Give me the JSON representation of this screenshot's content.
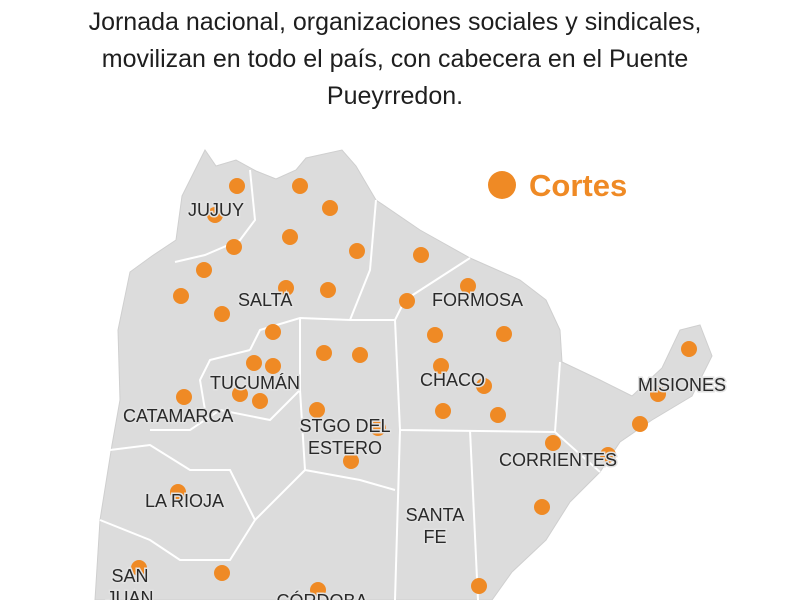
{
  "header": {
    "title": [
      "Jornada nacional, organizaciones sociales y sindicales,",
      "movilizan en todo el país, con cabecera en el Puente",
      "Pueyrredon."
    ]
  },
  "legend": {
    "label": "Cortes"
  },
  "labels": [
    {
      "lines": [
        "JUJUY"
      ]
    },
    {
      "lines": [
        "SALTA"
      ]
    },
    {
      "lines": [
        "FORMOSA"
      ]
    },
    {
      "lines": [
        "TUCUMÁN"
      ]
    },
    {
      "lines": [
        "CHACO"
      ]
    },
    {
      "lines": [
        "MISIONES"
      ]
    },
    {
      "lines": [
        "CATAMARCA"
      ]
    },
    {
      "lines": [
        "STGO DEL",
        "ESTERO"
      ]
    },
    {
      "lines": [
        "CORRIENTES"
      ]
    },
    {
      "lines": [
        "LA RIOJA"
      ]
    },
    {
      "lines": [
        "SANTA",
        "FE"
      ]
    },
    {
      "lines": [
        "SAN",
        "JUAN"
      ]
    },
    {
      "lines": [
        "CÓRDOBA"
      ]
    }
  ]
}
